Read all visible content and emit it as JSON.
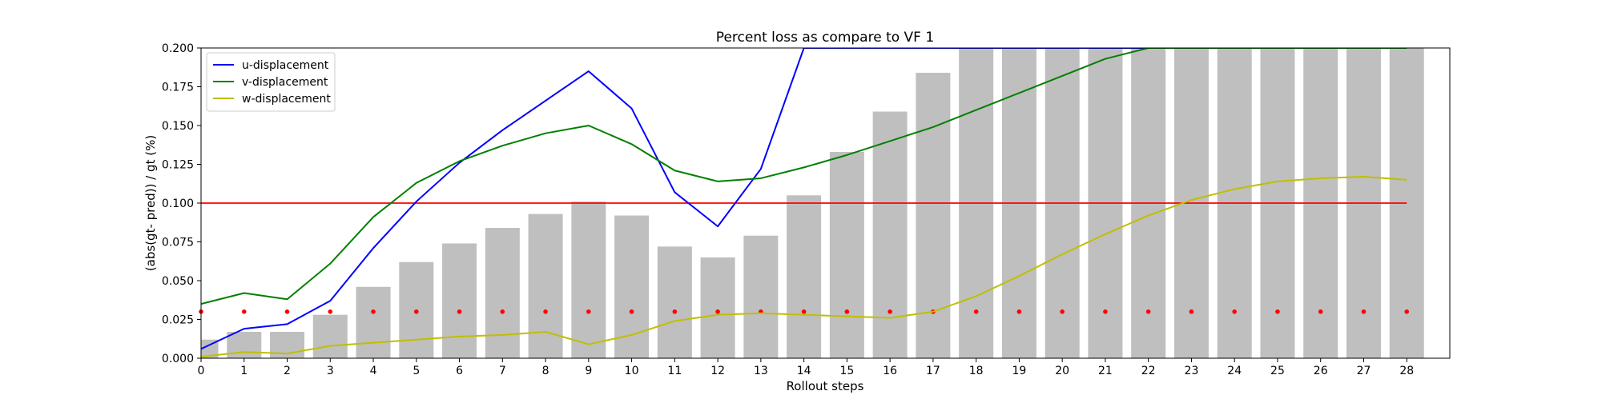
{
  "chart_data": {
    "type": "bar",
    "title": "Percent loss as compare to VF  1",
    "xlabel": "Rollout steps",
    "ylabel": "(abs(gt- pred)) / gt (%)",
    "x": [
      0,
      1,
      2,
      3,
      4,
      5,
      6,
      7,
      8,
      9,
      10,
      11,
      12,
      13,
      14,
      15,
      16,
      17,
      18,
      19,
      20,
      21,
      22,
      23,
      24,
      25,
      26,
      27,
      28
    ],
    "xlim": [
      0,
      29
    ],
    "ylim": [
      0,
      0.2
    ],
    "y_ticks": [
      "0.000",
      "0.025",
      "0.050",
      "0.075",
      "0.100",
      "0.125",
      "0.150",
      "0.175",
      "0.200"
    ],
    "bars": {
      "color": "#bfbfbf",
      "values": [
        0.012,
        0.017,
        0.017,
        0.028,
        0.046,
        0.062,
        0.074,
        0.084,
        0.093,
        0.101,
        0.092,
        0.072,
        0.065,
        0.079,
        0.105,
        0.133,
        0.159,
        0.184,
        0.2,
        0.2,
        0.2,
        0.2,
        0.2,
        0.2,
        0.2,
        0.2,
        0.2,
        0.2,
        0.2
      ]
    },
    "series": [
      {
        "name": "u-displacement",
        "color": "#0000ff",
        "values": [
          0.006,
          0.019,
          0.022,
          0.037,
          0.071,
          0.101,
          0.126,
          0.147,
          0.166,
          0.185,
          0.161,
          0.107,
          0.085,
          0.122,
          0.2,
          0.2,
          0.2,
          0.2,
          0.2,
          0.2,
          0.2,
          0.2,
          0.2,
          0.2,
          0.2,
          0.2,
          0.2,
          0.2,
          0.2
        ]
      },
      {
        "name": "v-displacement",
        "color": "#008000",
        "values": [
          0.035,
          0.042,
          0.038,
          0.061,
          0.091,
          0.113,
          0.127,
          0.137,
          0.145,
          0.15,
          0.138,
          0.121,
          0.114,
          0.116,
          0.123,
          0.131,
          0.14,
          0.149,
          0.16,
          0.171,
          0.182,
          0.193,
          0.2,
          0.2,
          0.2,
          0.2,
          0.2,
          0.2,
          0.2
        ]
      },
      {
        "name": "w-displacement",
        "color": "#bfbf00",
        "values": [
          0.001,
          0.004,
          0.003,
          0.008,
          0.01,
          0.012,
          0.014,
          0.015,
          0.017,
          0.009,
          0.015,
          0.024,
          0.028,
          0.029,
          0.028,
          0.027,
          0.026,
          0.03,
          0.04,
          0.053,
          0.067,
          0.08,
          0.092,
          0.102,
          0.109,
          0.114,
          0.116,
          0.117,
          0.115
        ]
      }
    ],
    "threshold": {
      "value": 0.1,
      "color": "#ff0000"
    },
    "dots": {
      "value": 0.03,
      "color": "#ff0000"
    },
    "legend": "top-left"
  }
}
